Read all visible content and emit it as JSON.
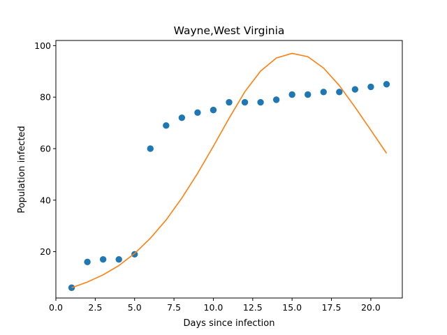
{
  "chart_data": {
    "type": "scatter",
    "title": "Wayne,West Virginia",
    "xlabel": "Days since infection",
    "ylabel": "Population infected",
    "xlim": [
      0.0,
      22.0
    ],
    "ylim": [
      2.0,
      102.0
    ],
    "xticks": [
      0.0,
      2.5,
      5.0,
      7.5,
      10.0,
      12.5,
      15.0,
      17.5,
      20.0
    ],
    "xtick_labels": [
      "0.0",
      "2.5",
      "5.0",
      "7.5",
      "10.0",
      "12.5",
      "15.0",
      "17.5",
      "20.0"
    ],
    "yticks": [
      20,
      40,
      60,
      80,
      100
    ],
    "ytick_labels": [
      "20",
      "40",
      "60",
      "80",
      "100"
    ],
    "grid": false,
    "series": [
      {
        "type": "scatter",
        "color": "#1f77b4",
        "x": [
          1,
          2,
          3,
          4,
          5,
          6,
          7,
          8,
          9,
          10,
          11,
          12,
          13,
          14,
          15,
          16,
          17,
          18,
          19,
          20,
          21
        ],
        "y": [
          6,
          16,
          17,
          17,
          19,
          60,
          69,
          72,
          74,
          75,
          78,
          78,
          78,
          79,
          81,
          81,
          82,
          82,
          83,
          84,
          85
        ]
      },
      {
        "type": "line",
        "color": "#ff7f0e",
        "x": [
          1,
          2,
          3,
          4,
          5,
          6,
          7,
          8,
          9,
          10,
          11,
          12,
          13,
          14,
          15,
          16,
          17,
          18,
          19,
          20,
          21
        ],
        "y": [
          6,
          8.2,
          11,
          14.6,
          19.3,
          25.2,
          32.3,
          40.8,
          50.4,
          60.9,
          71.8,
          82.1,
          90.1,
          95.2,
          97,
          95.7,
          91.3,
          84.5,
          76.1,
          67.2,
          58.2
        ]
      }
    ]
  }
}
